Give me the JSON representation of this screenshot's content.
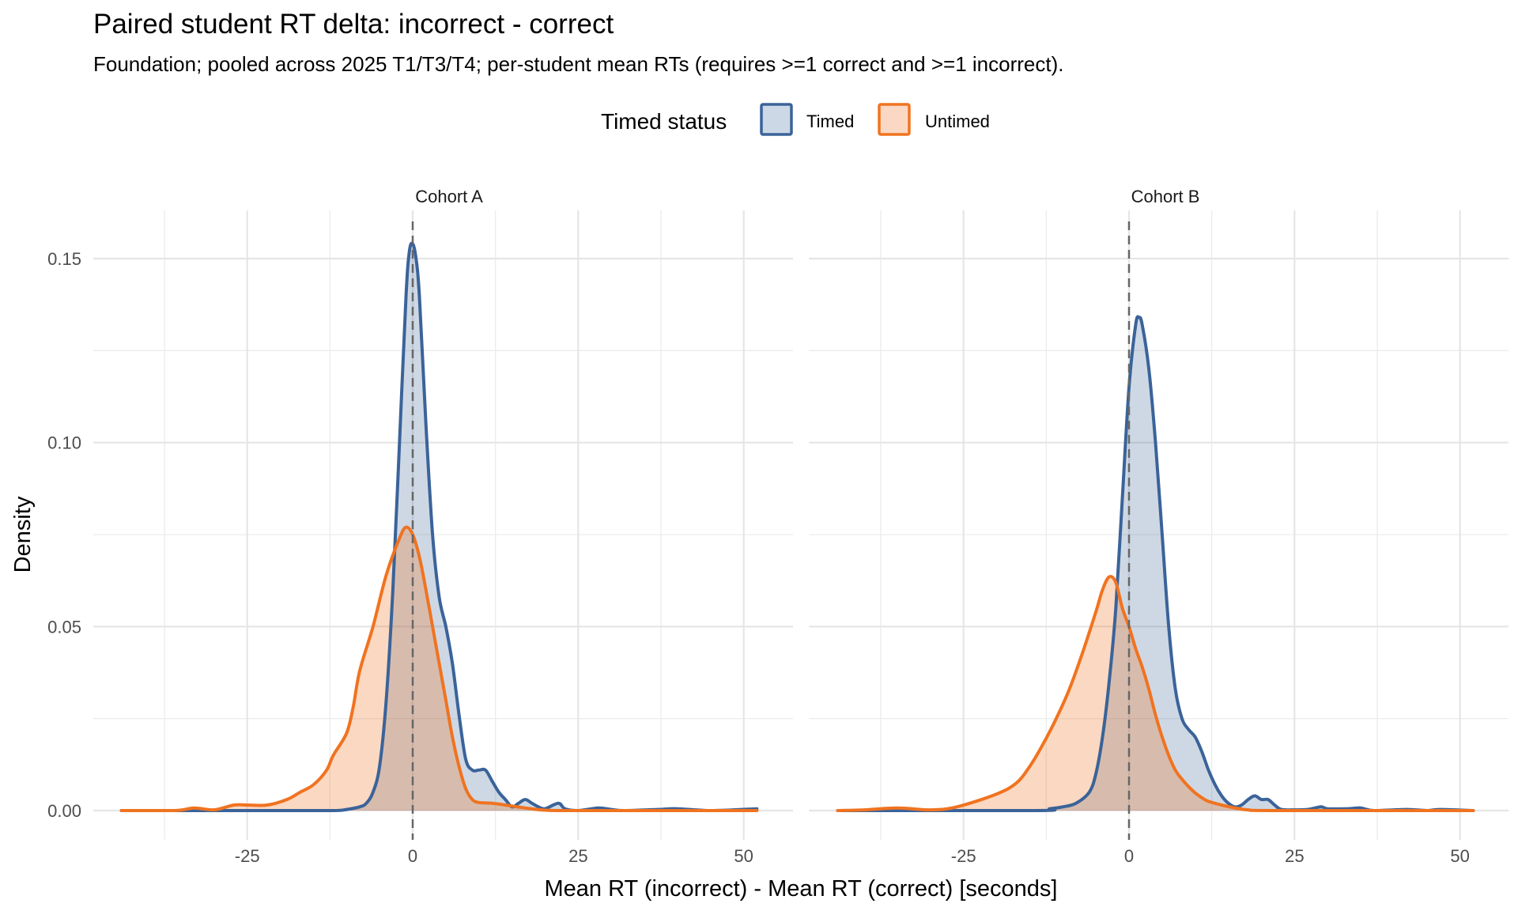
{
  "chart_data": {
    "type": "area",
    "subtype": "density",
    "title": "Paired student RT delta: incorrect - correct",
    "subtitle": "Foundation; pooled across 2025 T1/T3/T4; per-student mean RTs (requires >=1 correct and >=1 incorrect).",
    "xlabel": "Mean RT (incorrect) - Mean RT (correct) [seconds]",
    "ylabel": "Density",
    "xlim": [
      -47,
      55
    ],
    "ylim": [
      -0.008,
      0.16
    ],
    "x_ticks": [
      -25,
      0,
      25,
      50
    ],
    "x_tick_labels": [
      "-25",
      "0",
      "25",
      "50"
    ],
    "y_ticks": [
      0.0,
      0.05,
      0.1,
      0.15
    ],
    "y_tick_labels": [
      "0.00",
      "0.05",
      "0.10",
      "0.15"
    ],
    "grid": true,
    "reference_line": {
      "x": 0,
      "style": "dashed"
    },
    "legend": {
      "title": "Timed status",
      "position": "top",
      "entries": [
        {
          "name": "Timed",
          "line_color": "#3a6399",
          "fill_color": "#cdd8e6"
        },
        {
          "name": "Untimed",
          "line_color": "#f07320",
          "fill_color": "#fad8c3"
        }
      ]
    },
    "panels": [
      {
        "label": "Cohort A",
        "series": [
          {
            "name": "Timed",
            "x": [
              -44,
              -20,
              -12,
              -10,
              -8,
              -7,
              -6,
              -5,
              -4,
              -3,
              -2,
              -1,
              -0.5,
              0,
              0.5,
              1,
              2,
              3,
              4,
              5,
              6,
              7,
              8,
              9,
              10,
              11,
              12,
              13,
              14,
              15,
              16,
              17,
              18,
              19,
              20,
              22,
              23,
              25,
              28,
              30,
              32,
              37,
              40,
              45,
              52
            ],
            "y": [
              0,
              0,
              0,
              0.0003,
              0.001,
              0.002,
              0.005,
              0.012,
              0.03,
              0.06,
              0.1,
              0.14,
              0.152,
              0.154,
              0.15,
              0.14,
              0.105,
              0.075,
              0.058,
              0.05,
              0.04,
              0.026,
              0.014,
              0.011,
              0.011,
              0.011,
              0.008,
              0.005,
              0.003,
              0.001,
              0.002,
              0.003,
              0.002,
              0.001,
              0.0005,
              0.002,
              0.0005,
              0,
              0.0007,
              0.0003,
              0,
              0.0003,
              0.0005,
              0,
              0.0005
            ]
          },
          {
            "name": "Untimed",
            "x": [
              -44,
              -36,
              -33,
              -30,
              -27,
              -25,
              -22,
              -19,
              -17,
              -15,
              -13,
              -12,
              -10,
              -9,
              -8,
              -6,
              -4,
              -2,
              -1,
              0,
              1,
              2,
              3,
              4,
              5,
              6,
              7,
              8,
              9,
              10,
              12,
              14,
              17,
              20,
              25,
              52
            ],
            "y": [
              0,
              0,
              0.0007,
              0.0002,
              0.0015,
              0.0015,
              0.0015,
              0.003,
              0.005,
              0.007,
              0.011,
              0.015,
              0.021,
              0.028,
              0.038,
              0.05,
              0.064,
              0.074,
              0.077,
              0.075,
              0.069,
              0.06,
              0.05,
              0.04,
              0.03,
              0.02,
              0.012,
              0.006,
              0.003,
              0.0022,
              0.002,
              0.0015,
              0.0007,
              0.0001,
              0,
              0
            ]
          }
        ]
      },
      {
        "label": "Cohort B",
        "series": [
          {
            "name": "Timed",
            "x": [
              -44,
              -14,
              -12,
              -10,
              -8,
              -6,
              -5,
              -4,
              -3,
              -2,
              -1,
              0,
              1,
              1.5,
              2,
              3,
              4,
              5,
              6,
              7,
              8,
              9,
              10,
              11,
              12,
              13,
              14,
              15,
              16,
              17,
              18,
              19,
              20,
              21,
              22,
              23,
              25,
              27,
              29,
              30,
              33,
              35,
              37,
              42,
              45,
              47,
              52
            ],
            "y": [
              0,
              0,
              0.0005,
              0.001,
              0.002,
              0.005,
              0.01,
              0.02,
              0.035,
              0.055,
              0.085,
              0.115,
              0.132,
              0.134,
              0.132,
              0.12,
              0.1,
              0.075,
              0.05,
              0.033,
              0.025,
              0.022,
              0.02,
              0.016,
              0.011,
              0.007,
              0.004,
              0.002,
              0.001,
              0.0015,
              0.003,
              0.004,
              0.003,
              0.003,
              0.0015,
              0.0003,
              0.0002,
              0.0003,
              0.001,
              0.0005,
              0.0005,
              0.0007,
              0,
              0.0003,
              0,
              0.0003,
              0
            ]
          },
          {
            "name": "Untimed",
            "x": [
              -44,
              -40,
              -35,
              -30,
              -26,
              -20,
              -17,
              -15,
              -13,
              -11,
              -9,
              -7,
              -5,
              -4,
              -3,
              -2,
              -1,
              0,
              1,
              2,
              3,
              4,
              5,
              6,
              7,
              8,
              9,
              10,
              11,
              12,
              14,
              16,
              18,
              22,
              52
            ],
            "y": [
              0,
              0.0002,
              0.0007,
              0.0002,
              0.001,
              0.0045,
              0.0075,
              0.012,
              0.018,
              0.025,
              0.033,
              0.043,
              0.054,
              0.06,
              0.0635,
              0.062,
              0.055,
              0.05,
              0.044,
              0.039,
              0.033,
              0.026,
              0.02,
              0.015,
              0.011,
              0.0085,
              0.0065,
              0.0048,
              0.0035,
              0.0025,
              0.0015,
              0.0007,
              0.0002,
              0,
              0
            ]
          }
        ]
      }
    ]
  }
}
